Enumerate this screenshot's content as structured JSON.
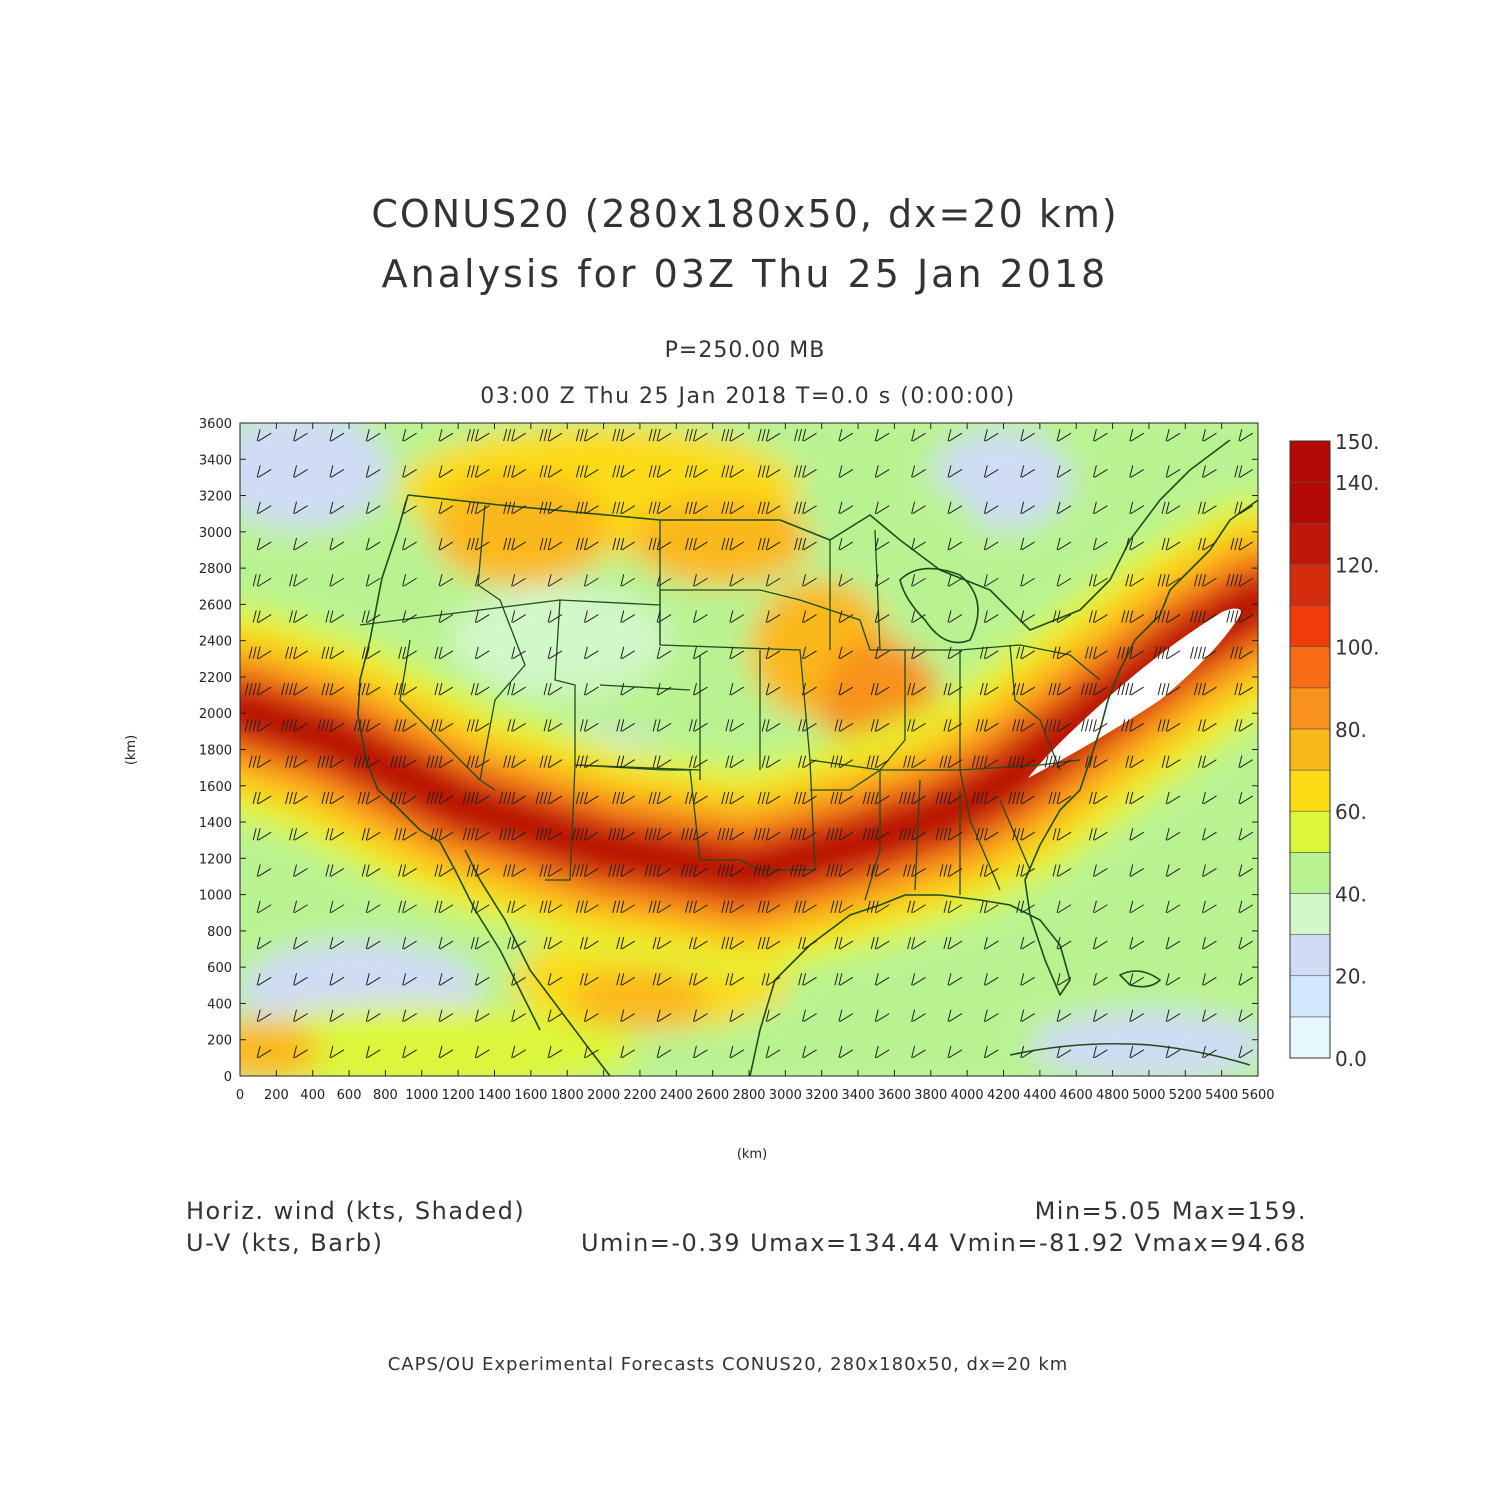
{
  "title": {
    "line1": "CONUS20 (280x180x50, dx=20 km)",
    "line2": "Analysis for 03Z Thu 25 Jan 2018"
  },
  "subtitle": {
    "level": "P=250.00 MB",
    "time": "03:00 Z Thu 25 Jan 2018    T=0.0 s (0:00:00)"
  },
  "chart_data": {
    "type": "heatmap",
    "field": "Horizontal wind speed (shaded) with wind barbs",
    "xlabel": "(km)",
    "ylabel": "(km)",
    "xlim": [
      0,
      5600
    ],
    "ylim": [
      0,
      3600
    ],
    "x_ticks": [
      "0",
      "200",
      "400",
      "600",
      "800",
      "1000",
      "1200",
      "1400",
      "1600",
      "1800",
      "2000",
      "2200",
      "2400",
      "2600",
      "2800",
      "3000",
      "3200",
      "3400",
      "3600",
      "3800",
      "4000",
      "4200",
      "4400",
      "4600",
      "4800",
      "5000",
      "5200",
      "5400",
      "5600"
    ],
    "y_ticks": [
      "0",
      "200",
      "400",
      "600",
      "800",
      "1000",
      "1200",
      "1400",
      "1600",
      "1800",
      "2000",
      "2200",
      "2400",
      "2600",
      "2800",
      "3000",
      "3200",
      "3400",
      "3600"
    ],
    "colorbar": {
      "levels": [
        0,
        10,
        20,
        30,
        40,
        50,
        60,
        70,
        80,
        90,
        100,
        110,
        120,
        130,
        140,
        150
      ],
      "labels": [
        "0.0",
        "20.",
        "40.",
        "60.",
        "80.",
        "100.",
        "120.",
        "140.",
        "150."
      ],
      "colors": [
        "#e6f7fd",
        "#cfe9fb",
        "#cfdcf4",
        "#d2f7c8",
        "#b9f391",
        "#dcf63b",
        "#fbdc14",
        "#fbb81a",
        "#f8921c",
        "#f56c14",
        "#f03c0a",
        "#d42c0c",
        "#c01808",
        "#b40a04"
      ]
    },
    "jet_axis_km": [
      [
        0,
        2020
      ],
      [
        500,
        1860
      ],
      [
        1200,
        1500
      ],
      [
        2000,
        1250
      ],
      [
        2800,
        1120
      ],
      [
        3400,
        1280
      ],
      [
        3900,
        1450
      ],
      [
        4200,
        1620
      ],
      [
        4700,
        2000
      ],
      [
        5200,
        2380
      ],
      [
        5600,
        2620
      ]
    ],
    "stats": {
      "min": 5.05,
      "max": 159,
      "umin": -0.39,
      "umax": 134.44,
      "vmin": -81.92,
      "vmax": 94.68
    }
  },
  "footer": {
    "left1": "Horiz. wind (kts, Shaded)",
    "left2": "U-V (kts, Barb)",
    "right1": "Min=5.05 Max=159.",
    "right2": "Umin=-0.39 Umax=134.44 Vmin=-81.92 Vmax=94.68",
    "credit": "CAPS/OU Experimental Forecasts  CONUS20, 280x180x50, dx=20 km"
  }
}
